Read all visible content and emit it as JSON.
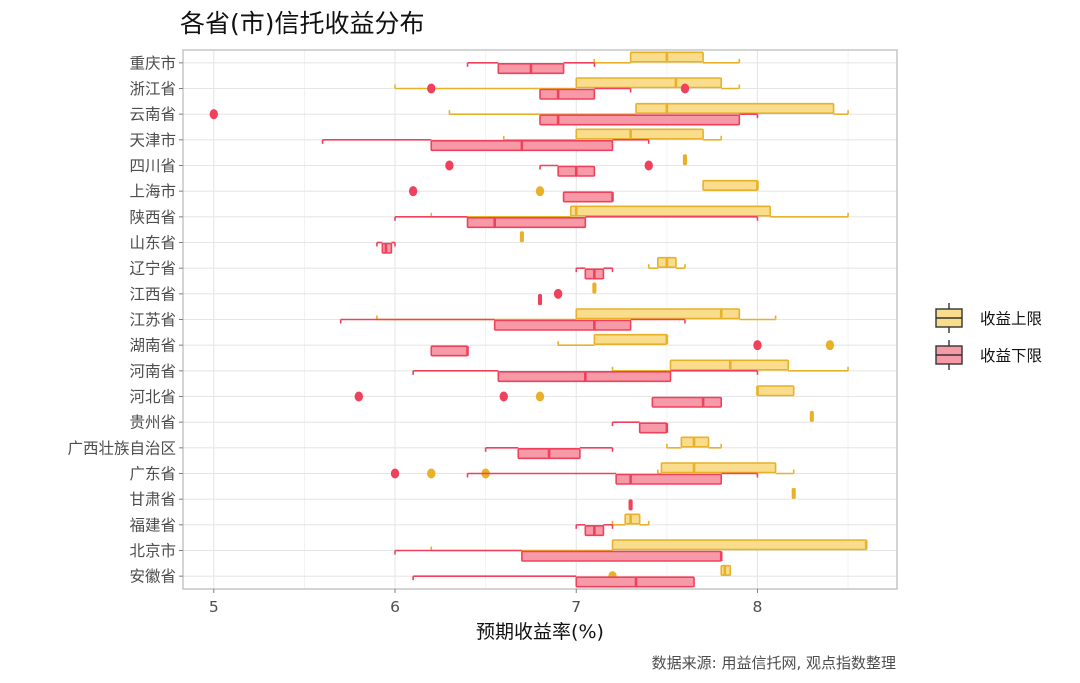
{
  "chart_data": {
    "type": "boxplot",
    "orientation": "horizontal",
    "title": "各省(市)信托收益分布",
    "xlabel": "预期收益率(%)",
    "ylabel": "",
    "caption": "数据来源: 用益信托网, 观点指数整理",
    "xlim": [
      4.83,
      8.77
    ],
    "xticks": [
      5,
      6,
      7,
      8
    ],
    "grid": true,
    "legend": {
      "position": "right",
      "entries": [
        {
          "label": "收益上限",
          "fill": "#f9dc8c",
          "stroke": "#e8b12a"
        },
        {
          "label": "收益下限",
          "fill": "#f79aa7",
          "stroke": "#f0415c"
        }
      ]
    },
    "colors": {
      "upper_fill": "#f9dc8c",
      "upper_stroke": "#e8b12a",
      "lower_fill": "#f79aa7",
      "lower_stroke": "#f0415c",
      "grid": "#e6e6e6",
      "panel_border": "#bdbdbd"
    },
    "categories": [
      "重庆市",
      "浙江省",
      "云南省",
      "天津市",
      "四川省",
      "上海市",
      "陕西省",
      "山东省",
      "辽宁省",
      "江西省",
      "江苏省",
      "湖南省",
      "河南省",
      "河北省",
      "贵州省",
      "广西壮族自治区",
      "广东省",
      "甘肃省",
      "福建省",
      "北京市",
      "安徽省"
    ],
    "series": [
      {
        "name": "收益上限",
        "boxes": [
          {
            "lo": 7.1,
            "q1": 7.3,
            "med": 7.5,
            "q3": 7.7,
            "hi": 7.9,
            "out": []
          },
          {
            "lo": 6.0,
            "q1": 7.0,
            "med": 7.55,
            "q3": 7.8,
            "hi": 7.9,
            "out": []
          },
          {
            "lo": 6.3,
            "q1": 7.33,
            "med": 7.5,
            "q3": 8.42,
            "hi": 8.5,
            "out": []
          },
          {
            "lo": 6.6,
            "q1": 7.0,
            "med": 7.3,
            "q3": 7.7,
            "hi": 7.8,
            "out": []
          },
          {
            "lo": 7.6,
            "q1": 7.6,
            "med": 7.6,
            "q3": 7.6,
            "hi": 7.6,
            "out": []
          },
          {
            "lo": 7.7,
            "q1": 7.7,
            "med": 8.0,
            "q3": 8.0,
            "hi": 8.0,
            "out": [
              6.8
            ]
          },
          {
            "lo": 6.2,
            "q1": 6.97,
            "med": 7.0,
            "q3": 8.07,
            "hi": 8.5,
            "out": []
          },
          {
            "lo": 6.7,
            "q1": 6.7,
            "med": 6.7,
            "q3": 6.7,
            "hi": 6.7,
            "out": []
          },
          {
            "lo": 7.4,
            "q1": 7.45,
            "med": 7.5,
            "q3": 7.55,
            "hi": 7.6,
            "out": []
          },
          {
            "lo": 7.1,
            "q1": 7.1,
            "med": 7.1,
            "q3": 7.1,
            "hi": 7.1,
            "out": []
          },
          {
            "lo": 5.9,
            "q1": 7.0,
            "med": 7.8,
            "q3": 7.9,
            "hi": 8.1,
            "out": []
          },
          {
            "lo": 6.9,
            "q1": 7.1,
            "med": 7.5,
            "q3": 7.5,
            "hi": 7.5,
            "out": [
              8.4
            ]
          },
          {
            "lo": 7.2,
            "q1": 7.52,
            "med": 7.85,
            "q3": 8.17,
            "hi": 8.5,
            "out": []
          },
          {
            "lo": 8.0,
            "q1": 8.0,
            "med": 8.0,
            "q3": 8.2,
            "hi": 8.2,
            "out": [
              6.8
            ]
          },
          {
            "lo": 8.3,
            "q1": 8.3,
            "med": 8.3,
            "q3": 8.3,
            "hi": 8.3,
            "out": []
          },
          {
            "lo": 7.5,
            "q1": 7.58,
            "med": 7.65,
            "q3": 7.73,
            "hi": 7.8,
            "out": []
          },
          {
            "lo": 7.45,
            "q1": 7.47,
            "med": 7.65,
            "q3": 8.1,
            "hi": 8.2,
            "out": [
              6.2,
              6.5
            ]
          },
          {
            "lo": 8.2,
            "q1": 8.2,
            "med": 8.2,
            "q3": 8.2,
            "hi": 8.2,
            "out": []
          },
          {
            "lo": 7.2,
            "q1": 7.27,
            "med": 7.3,
            "q3": 7.35,
            "hi": 7.4,
            "out": []
          },
          {
            "lo": 6.2,
            "q1": 7.2,
            "med": 8.6,
            "q3": 8.6,
            "hi": 8.6,
            "out": []
          },
          {
            "lo": 7.8,
            "q1": 7.8,
            "med": 7.82,
            "q3": 7.85,
            "hi": 7.85,
            "out": [
              7.2
            ]
          }
        ]
      },
      {
        "name": "收益下限",
        "boxes": [
          {
            "lo": 6.4,
            "q1": 6.57,
            "med": 6.75,
            "q3": 6.93,
            "hi": 7.1,
            "out": []
          },
          {
            "lo": 6.8,
            "q1": 6.8,
            "med": 6.9,
            "q3": 7.1,
            "hi": 7.3,
            "out": [
              6.2,
              7.6
            ]
          },
          {
            "lo": 6.8,
            "q1": 6.8,
            "med": 6.9,
            "q3": 7.9,
            "hi": 8.0,
            "out": [
              5.0
            ]
          },
          {
            "lo": 5.6,
            "q1": 6.2,
            "med": 6.7,
            "q3": 7.2,
            "hi": 7.4,
            "out": []
          },
          {
            "lo": 6.8,
            "q1": 6.9,
            "med": 7.0,
            "q3": 7.1,
            "hi": 7.1,
            "out": [
              6.3,
              7.4
            ]
          },
          {
            "lo": 6.93,
            "q1": 6.93,
            "med": 7.2,
            "q3": 7.2,
            "hi": 7.2,
            "out": [
              6.1
            ]
          },
          {
            "lo": 6.0,
            "q1": 6.4,
            "med": 6.55,
            "q3": 7.05,
            "hi": 8.0,
            "out": []
          },
          {
            "lo": 5.9,
            "q1": 5.93,
            "med": 5.95,
            "q3": 5.98,
            "hi": 6.0,
            "out": []
          },
          {
            "lo": 7.0,
            "q1": 7.05,
            "med": 7.1,
            "q3": 7.15,
            "hi": 7.2,
            "out": []
          },
          {
            "lo": 6.8,
            "q1": 6.8,
            "med": 6.8,
            "q3": 6.8,
            "hi": 6.8,
            "out": [
              6.9
            ]
          },
          {
            "lo": 5.7,
            "q1": 6.55,
            "med": 7.1,
            "q3": 7.3,
            "hi": 7.6,
            "out": []
          },
          {
            "lo": 6.2,
            "q1": 6.2,
            "med": 6.4,
            "q3": 6.4,
            "hi": 6.4,
            "out": [
              8.0
            ]
          },
          {
            "lo": 6.1,
            "q1": 6.57,
            "med": 7.05,
            "q3": 7.52,
            "hi": 8.0,
            "out": []
          },
          {
            "lo": 7.42,
            "q1": 7.42,
            "med": 7.7,
            "q3": 7.8,
            "hi": 7.8,
            "out": [
              5.8,
              6.6
            ]
          },
          {
            "lo": 7.2,
            "q1": 7.35,
            "med": 7.5,
            "q3": 7.5,
            "hi": 7.5,
            "out": []
          },
          {
            "lo": 6.5,
            "q1": 6.68,
            "med": 6.85,
            "q3": 7.02,
            "hi": 7.2,
            "out": []
          },
          {
            "lo": 6.4,
            "q1": 7.22,
            "med": 7.3,
            "q3": 7.8,
            "hi": 8.0,
            "out": [
              6.0
            ]
          },
          {
            "lo": 7.3,
            "q1": 7.3,
            "med": 7.3,
            "q3": 7.3,
            "hi": 7.3,
            "out": []
          },
          {
            "lo": 7.0,
            "q1": 7.05,
            "med": 7.1,
            "q3": 7.15,
            "hi": 7.2,
            "out": []
          },
          {
            "lo": 6.0,
            "q1": 6.7,
            "med": 7.8,
            "q3": 7.8,
            "hi": 7.8,
            "out": []
          },
          {
            "lo": 6.1,
            "q1": 7.0,
            "med": 7.33,
            "q3": 7.65,
            "hi": 7.65,
            "out": []
          }
        ]
      }
    ]
  }
}
